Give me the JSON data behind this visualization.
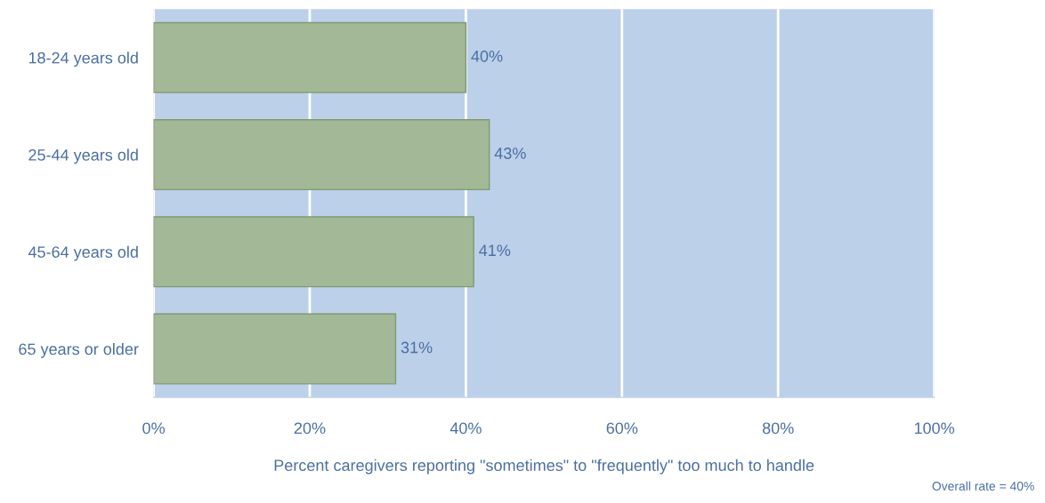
{
  "chart_data": {
    "type": "bar",
    "orientation": "horizontal",
    "categories": [
      "18-24 years old",
      "25-44 years old",
      "45-64 years old",
      "65 years or older"
    ],
    "values": [
      40,
      43,
      41,
      31
    ],
    "value_labels": [
      "40%",
      "43%",
      "41%",
      "31%"
    ],
    "color": "#a3b896",
    "xlim": [
      0,
      100
    ],
    "xticks": [
      {
        "value": 0,
        "label": "0%"
      },
      {
        "value": 20,
        "label": "20%"
      },
      {
        "value": 40,
        "label": "40%"
      },
      {
        "value": 60,
        "label": "60%"
      },
      {
        "value": 80,
        "label": "80%"
      },
      {
        "value": 100,
        "label": "100%"
      }
    ],
    "xlabel": "Percent caregivers reporting \"sometimes\" to \"frequently\" too much to handle",
    "annotations": [
      "Overall rate = 40%"
    ],
    "grid": "x"
  }
}
